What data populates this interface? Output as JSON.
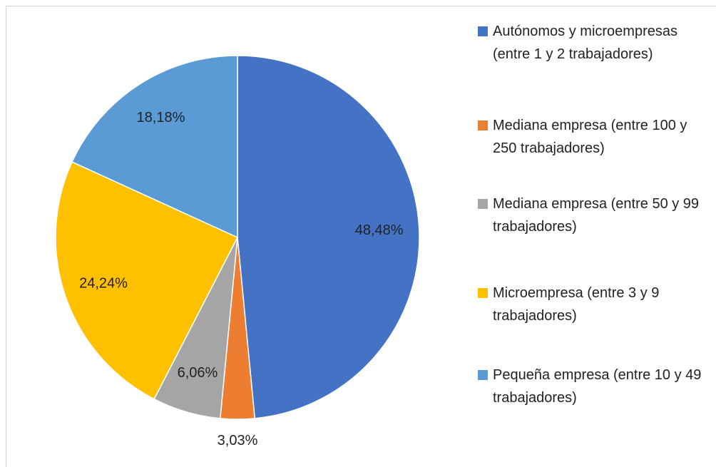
{
  "chart_data": {
    "type": "pie",
    "categories": [
      "Autónomos y microempresas (entre 1 y 2 trabajadores)",
      "Mediana empresa (entre 100 y 250 trabajadores)",
      "Mediana empresa (entre 50 y 99 trabajadores)",
      "Microempresa (entre 3 y 9 trabajadores)",
      "Pequeña empresa (entre 10 y 49 trabajadores)"
    ],
    "values": [
      48.48,
      3.03,
      6.06,
      24.24,
      18.18
    ],
    "value_labels": [
      "48,48%",
      "3,03%",
      "6,06%",
      "24,24%",
      "18,18%"
    ],
    "colors": [
      "#4472c4",
      "#ed7d31",
      "#a5a5a5",
      "#ffc000",
      "#5b9bd5"
    ],
    "legend": "right"
  }
}
